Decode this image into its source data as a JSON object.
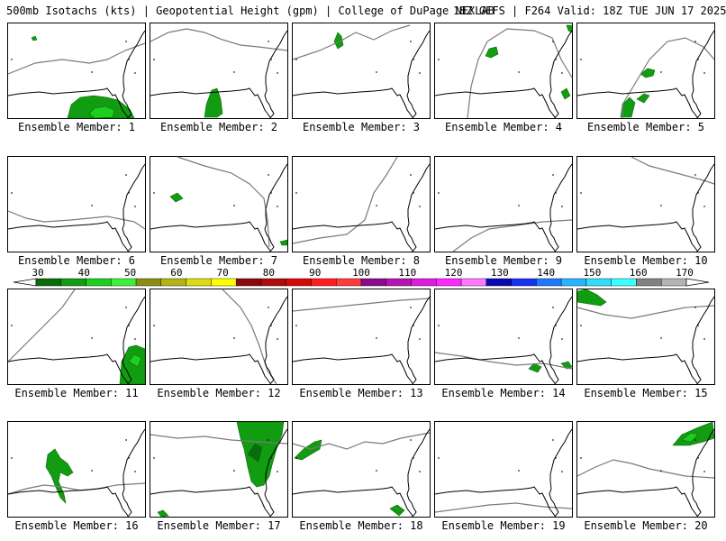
{
  "header": {
    "product": "500mb Isotachs (kts) | Geopotential Height (gpm) | College of DuPage NEXLAB",
    "run_info": "18Z GEFS | F264 Valid: 18Z TUE JUN 17 2025"
  },
  "colorbar": {
    "ticks": [
      "30",
      "40",
      "50",
      "60",
      "70",
      "80",
      "90",
      "100",
      "110",
      "120",
      "130",
      "140",
      "150",
      "160",
      "170"
    ],
    "colors": [
      "#0a6c0a",
      "#119c11",
      "#1ece1e",
      "#3ef03e",
      "#8c8c14",
      "#b4b414",
      "#dcdc14",
      "#ffff00",
      "#8b0a0a",
      "#b00a0a",
      "#d40a0a",
      "#ff1e1e",
      "#ff3c3c",
      "#8c0a8c",
      "#b414b4",
      "#dc1edc",
      "#ff28ff",
      "#ff78ff",
      "#0a0ab4",
      "#1432f0",
      "#1e78ff",
      "#28b4ff",
      "#32dcff",
      "#3cffff",
      "#828282",
      "#b4b4b4"
    ]
  },
  "panels": [
    {
      "caption": "Ensemble Member: 1"
    },
    {
      "caption": "Ensemble Member: 2"
    },
    {
      "caption": "Ensemble Member: 3"
    },
    {
      "caption": "Ensemble Member: 4"
    },
    {
      "caption": "Ensemble Member: 5"
    },
    {
      "caption": "Ensemble Member: 6"
    },
    {
      "caption": "Ensemble Member: 7"
    },
    {
      "caption": "Ensemble Member: 8"
    },
    {
      "caption": "Ensemble Member: 9"
    },
    {
      "caption": "Ensemble Member: 10"
    },
    {
      "caption": "Ensemble Member: 11"
    },
    {
      "caption": "Ensemble Member: 12"
    },
    {
      "caption": "Ensemble Member: 13"
    },
    {
      "caption": "Ensemble Member: 14"
    },
    {
      "caption": "Ensemble Member: 15"
    },
    {
      "caption": "Ensemble Member: 16"
    },
    {
      "caption": "Ensemble Member: 17"
    },
    {
      "caption": "Ensemble Member: 18"
    },
    {
      "caption": "Ensemble Member: 19"
    },
    {
      "caption": "Ensemble Member: 20"
    }
  ]
}
